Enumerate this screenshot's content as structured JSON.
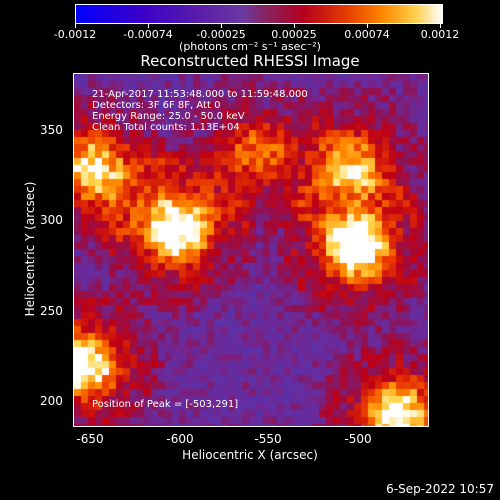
{
  "colorbar": {
    "ticks": [
      "-0.0012",
      "-0.00074",
      "-0.00025",
      "0.00025",
      "0.00074",
      "0.0012"
    ],
    "units": "(photons cm⁻² s⁻¹ asec⁻²)"
  },
  "title": "Reconstructed RHESSI Image",
  "annotations": {
    "time_range": "21-Apr-2017 11:53:48.000 to 11:59:48.000",
    "detectors": "Detectors: 3F 6F 8F, Att 0",
    "energy": "Energy Range: 25.0 - 50.0 keV",
    "method": "Clean     Total counts: 1.13E+04",
    "peak": "Position of Peak = [-503,291]"
  },
  "axes": {
    "xlabel": "Heliocentric X (arcsec)",
    "ylabel": "Heliocentric Y (arcsec)",
    "xticks": [
      "-650",
      "-600",
      "-550",
      "-500"
    ],
    "yticks": [
      "350",
      "300",
      "250",
      "200"
    ]
  },
  "datestamp": "6-Sep-2022 10:57",
  "image": {
    "sources": [
      {
        "x": -603,
        "y": 301,
        "strength": 1.0
      },
      {
        "x": -503,
        "y": 291,
        "strength": 1.0
      },
      {
        "x": -655,
        "y": 225,
        "strength": 0.95
      },
      {
        "x": -480,
        "y": 197,
        "strength": 0.95
      },
      {
        "x": -650,
        "y": 335,
        "strength": 0.85
      },
      {
        "x": -505,
        "y": 338,
        "strength": 0.7
      },
      {
        "x": -560,
        "y": 345,
        "strength": 0.55
      }
    ]
  }
}
